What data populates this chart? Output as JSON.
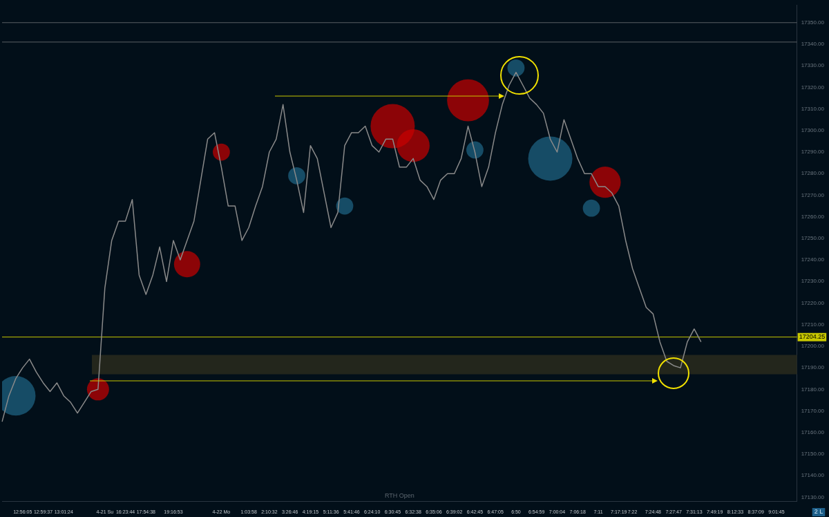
{
  "chart_data": {
    "type": "line",
    "categories": [
      null,
      null,
      null,
      "12:56:05",
      null,
      null,
      "12:59:37",
      null,
      null,
      "13:01:24",
      null,
      null,
      null,
      null,
      null,
      "4-21 Su",
      null,
      null,
      "16:23:44",
      null,
      null,
      "17:54:38",
      null,
      null,
      null,
      "19:16:53",
      null,
      null,
      null,
      null,
      null,
      null,
      "4-22 Mo",
      null,
      null,
      null,
      "1:03:58",
      null,
      null,
      "2:10:32",
      null,
      null,
      "3:26:46",
      null,
      null,
      "4:19:15",
      null,
      null,
      "5:11:36",
      null,
      null,
      "5:41:46",
      null,
      null,
      "6:24:10",
      null,
      null,
      "6:30:45",
      null,
      null,
      "6:32:38",
      null,
      null,
      "6:35:06",
      null,
      null,
      "6:39:02",
      null,
      null,
      "6:42:45",
      null,
      null,
      "6:47:05",
      null,
      null,
      "6:50",
      null,
      null,
      "6:54:59",
      null,
      null,
      "7:00:04",
      null,
      null,
      "7:06:18",
      null,
      null,
      "7:11",
      null,
      null,
      "7:17:19",
      null,
      "7:22",
      null,
      null,
      "7:24:48",
      null,
      null,
      "7:27:47",
      null,
      null,
      "7:31:13",
      null,
      null,
      "7:49:19",
      null,
      null,
      "8:12:33",
      null,
      null,
      "8:37:09",
      null,
      null,
      "9:01:45",
      null,
      null,
      null
    ],
    "series": [
      {
        "type": "line",
        "marker": "none",
        "color": "#8a8a8a",
        "values": [
          17165,
          17177,
          17185,
          17190,
          17194,
          17188,
          17183,
          17179,
          17183,
          17177,
          17174,
          17169,
          17174,
          17179,
          17180,
          17227,
          17249,
          17258,
          17258,
          17268,
          17233,
          17224,
          17233,
          17246,
          17230,
          17249,
          17240,
          17249,
          17258,
          17277,
          17296,
          17299,
          17283,
          17265,
          17265,
          17249,
          17255,
          17265,
          17274,
          17290,
          17296,
          17312,
          17290,
          17277,
          17262,
          17293,
          17287,
          17271,
          17255,
          17262,
          17293,
          17299,
          17299,
          17302,
          17293,
          17290,
          17296,
          17296,
          17283,
          17283,
          17287,
          17277,
          17274,
          17268,
          17277,
          17280,
          17280,
          17287,
          17302,
          17290,
          17274,
          17283,
          17299,
          17312,
          17321,
          17327,
          17321,
          17315,
          17312,
          17308,
          17296,
          17290,
          17305,
          17296,
          17287,
          17280,
          17280,
          17274,
          17274,
          17271,
          17265,
          17249,
          17236,
          17227,
          17218,
          17215,
          17202,
          17193,
          17191,
          17190,
          17202,
          17208,
          17202,
          null,
          null,
          null,
          null,
          null,
          null,
          null,
          null,
          null,
          null,
          null,
          null,
          null,
          null
        ]
      },
      {
        "type": "bubble",
        "color": "#c80000",
        "values": [
          null,
          null,
          null,
          null,
          null,
          null,
          null,
          null,
          null,
          null,
          null,
          null,
          null,
          null,
          17180,
          null,
          null,
          null,
          null,
          null,
          null,
          null,
          null,
          null,
          null,
          null,
          null,
          17238,
          null,
          null,
          null,
          null,
          17290,
          null,
          null,
          null,
          null,
          null,
          null,
          null,
          null,
          null,
          null,
          null,
          null,
          null,
          null,
          null,
          null,
          null,
          null,
          null,
          null,
          null,
          null,
          null,
          null,
          17302,
          null,
          null,
          17293,
          null,
          null,
          null,
          null,
          null,
          null,
          null,
          17314,
          null,
          null,
          null,
          null,
          null,
          null,
          null,
          null,
          null,
          null,
          null,
          null,
          null,
          null,
          null,
          null,
          null,
          null,
          null,
          17276,
          null,
          null,
          null,
          null,
          null,
          null,
          null,
          null,
          null,
          null,
          null,
          null,
          null,
          null,
          null,
          null,
          null,
          null,
          null,
          null,
          null,
          null,
          null,
          null,
          null,
          null,
          null,
          null
        ],
        "sizes": [
          null,
          null,
          null,
          null,
          null,
          null,
          null,
          null,
          null,
          null,
          null,
          null,
          null,
          null,
          0.25,
          null,
          null,
          null,
          null,
          null,
          null,
          null,
          null,
          null,
          null,
          null,
          null,
          0.35,
          null,
          null,
          null,
          null,
          0.15,
          null,
          null,
          null,
          null,
          null,
          null,
          null,
          null,
          null,
          null,
          null,
          null,
          null,
          null,
          null,
          null,
          null,
          null,
          null,
          null,
          null,
          null,
          null,
          null,
          1,
          null,
          null,
          0.55,
          null,
          null,
          null,
          null,
          null,
          null,
          null,
          0.9,
          null,
          null,
          null,
          null,
          null,
          null,
          null,
          null,
          null,
          null,
          null,
          null,
          null,
          null,
          null,
          null,
          null,
          null,
          null,
          0.5,
          null,
          null,
          null,
          null,
          null,
          null,
          null,
          null,
          null,
          null,
          null,
          null,
          null,
          null,
          null,
          null,
          null,
          null,
          null,
          null,
          null,
          null,
          null,
          null,
          null,
          null,
          null,
          null
        ]
      },
      {
        "type": "bubble",
        "color": "#1f6688",
        "values": [
          null,
          null,
          17177,
          null,
          null,
          null,
          null,
          null,
          null,
          null,
          null,
          null,
          null,
          null,
          null,
          null,
          null,
          null,
          null,
          null,
          null,
          null,
          null,
          null,
          null,
          null,
          null,
          null,
          null,
          null,
          null,
          null,
          null,
          null,
          null,
          null,
          null,
          null,
          null,
          null,
          null,
          null,
          null,
          17279,
          null,
          null,
          null,
          null,
          null,
          null,
          17265,
          null,
          null,
          null,
          null,
          null,
          null,
          null,
          null,
          null,
          null,
          null,
          null,
          null,
          null,
          null,
          null,
          null,
          null,
          17291,
          null,
          null,
          null,
          null,
          null,
          17329,
          null,
          null,
          null,
          null,
          17287,
          null,
          null,
          null,
          null,
          null,
          17264,
          null,
          null,
          null,
          null,
          null,
          null,
          null,
          null,
          null,
          null,
          null,
          null,
          null,
          null,
          null,
          null,
          null,
          null,
          null,
          null,
          null,
          null,
          null,
          null,
          null,
          null,
          null,
          null,
          null,
          null
        ],
        "sizes": [
          null,
          null,
          0.8,
          null,
          null,
          null,
          null,
          null,
          null,
          null,
          null,
          null,
          null,
          null,
          null,
          null,
          null,
          null,
          null,
          null,
          null,
          null,
          null,
          null,
          null,
          null,
          null,
          null,
          null,
          null,
          null,
          null,
          null,
          null,
          null,
          null,
          null,
          null,
          null,
          null,
          null,
          null,
          null,
          0.15,
          null,
          null,
          null,
          null,
          null,
          null,
          0.15,
          null,
          null,
          null,
          null,
          null,
          null,
          null,
          null,
          null,
          null,
          null,
          null,
          null,
          null,
          null,
          null,
          null,
          null,
          0.15,
          null,
          null,
          null,
          null,
          null,
          0.15,
          null,
          null,
          null,
          null,
          1,
          null,
          null,
          null,
          null,
          null,
          0.15,
          null,
          null,
          null,
          null,
          null,
          null,
          null,
          null,
          null,
          null,
          null,
          null,
          null,
          null,
          null,
          null,
          null,
          null,
          null,
          null,
          null,
          null,
          null,
          null,
          null,
          null,
          null,
          null,
          null,
          null
        ]
      }
    ],
    "ylim": [
      17128,
      17358
    ],
    "yticks": [
      {
        "value": 17130,
        "label": "17130.00"
      },
      {
        "value": 17140,
        "label": "17140.00"
      },
      {
        "value": 17150,
        "label": "17150.00"
      },
      {
        "value": 17160,
        "label": "17160.00"
      },
      {
        "value": 17170,
        "label": "17170.00"
      },
      {
        "value": 17180,
        "label": "17180.00"
      },
      {
        "value": 17190,
        "label": "17190.00"
      },
      {
        "value": 17200,
        "label": "17200.00"
      },
      {
        "value": 17210,
        "label": "17210.00"
      },
      {
        "value": 17220,
        "label": "17220.00"
      },
      {
        "value": 17230,
        "label": "17230.00"
      },
      {
        "value": 17240,
        "label": "17240.00"
      },
      {
        "value": 17250,
        "label": "17250.00"
      },
      {
        "value": 17260,
        "label": "17260.00"
      },
      {
        "value": 17270,
        "label": "17270.00"
      },
      {
        "value": 17280,
        "label": "17280.00"
      },
      {
        "value": 17290,
        "label": "17290.00"
      },
      {
        "value": 17300,
        "label": "17300.00"
      },
      {
        "value": 17310,
        "label": "17310.00"
      },
      {
        "value": 17320,
        "label": "17320.00"
      },
      {
        "value": 17330,
        "label": "17330.00"
      },
      {
        "value": 17340,
        "label": "17340.00"
      },
      {
        "value": 17350,
        "label": "17350.00"
      }
    ],
    "ref_lines": [
      {
        "axis": "y",
        "value": 17350,
        "color": "#5a5f66"
      },
      {
        "axis": "y",
        "value": 17341,
        "color": "#5a5f66"
      },
      {
        "axis": "y",
        "value": 17204.25,
        "label": "17204.25",
        "color": "#c8c800"
      }
    ],
    "bands": [
      {
        "axis": "y",
        "from": 17187,
        "to": 17196,
        "color": "#23261c"
      }
    ],
    "annotations": [
      "RTH Open",
      "2 L"
    ]
  }
}
